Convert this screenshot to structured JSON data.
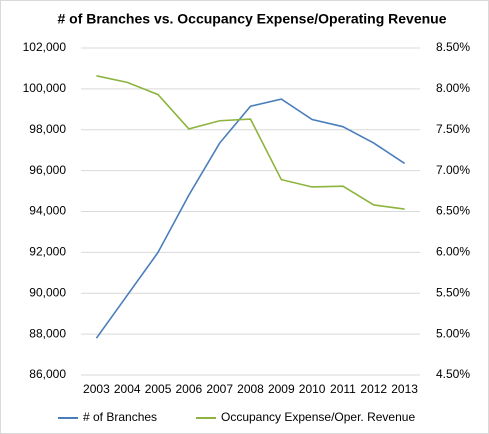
{
  "chart_data": {
    "type": "line",
    "title": "# of Branches vs. Occupancy Expense/Operating Revenue",
    "categories": [
      "2003",
      "2004",
      "2005",
      "2006",
      "2007",
      "2008",
      "2009",
      "2010",
      "2011",
      "2012",
      "2013"
    ],
    "series": [
      {
        "name": "# of Branches",
        "color": "#4a7ebb",
        "values": [
          87800,
          89900,
          92000,
          94800,
          97350,
          99150,
          99500,
          98500,
          98150,
          97350,
          96350
        ]
      },
      {
        "name": "Occupancy Expense/Oper. Revenue",
        "color": "#8db43e",
        "axis": "y2",
        "values": [
          8.16,
          8.08,
          7.93,
          7.51,
          7.61,
          7.63,
          6.89,
          6.8,
          6.81,
          6.58,
          6.53
        ]
      }
    ],
    "ylim": [
      86000,
      102000
    ],
    "yticks": [
      {
        "value": 86000,
        "label": "86,000"
      },
      {
        "value": 88000,
        "label": "88,000"
      },
      {
        "value": 90000,
        "label": "90,000"
      },
      {
        "value": 92000,
        "label": "92,000"
      },
      {
        "value": 94000,
        "label": "94,000"
      },
      {
        "value": 96000,
        "label": "96,000"
      },
      {
        "value": 98000,
        "label": "98,000"
      },
      {
        "value": 100000,
        "label": "100,000"
      },
      {
        "value": 102000,
        "label": "102,000"
      }
    ],
    "y2lim": [
      4.5,
      8.5
    ],
    "y2ticks": [
      {
        "value": 4.5,
        "label": "4.50%"
      },
      {
        "value": 5,
        "label": "5.00%"
      },
      {
        "value": 5.5,
        "label": "5.50%"
      },
      {
        "value": 6,
        "label": "6.00%"
      },
      {
        "value": 6.5,
        "label": "6.50%"
      },
      {
        "value": 7,
        "label": "7.00%"
      },
      {
        "value": 7.5,
        "label": "7.50%"
      },
      {
        "value": 8,
        "label": "8.00%"
      },
      {
        "value": 8.5,
        "label": "8.50%"
      }
    ],
    "grid": true,
    "legend": "bottom"
  }
}
